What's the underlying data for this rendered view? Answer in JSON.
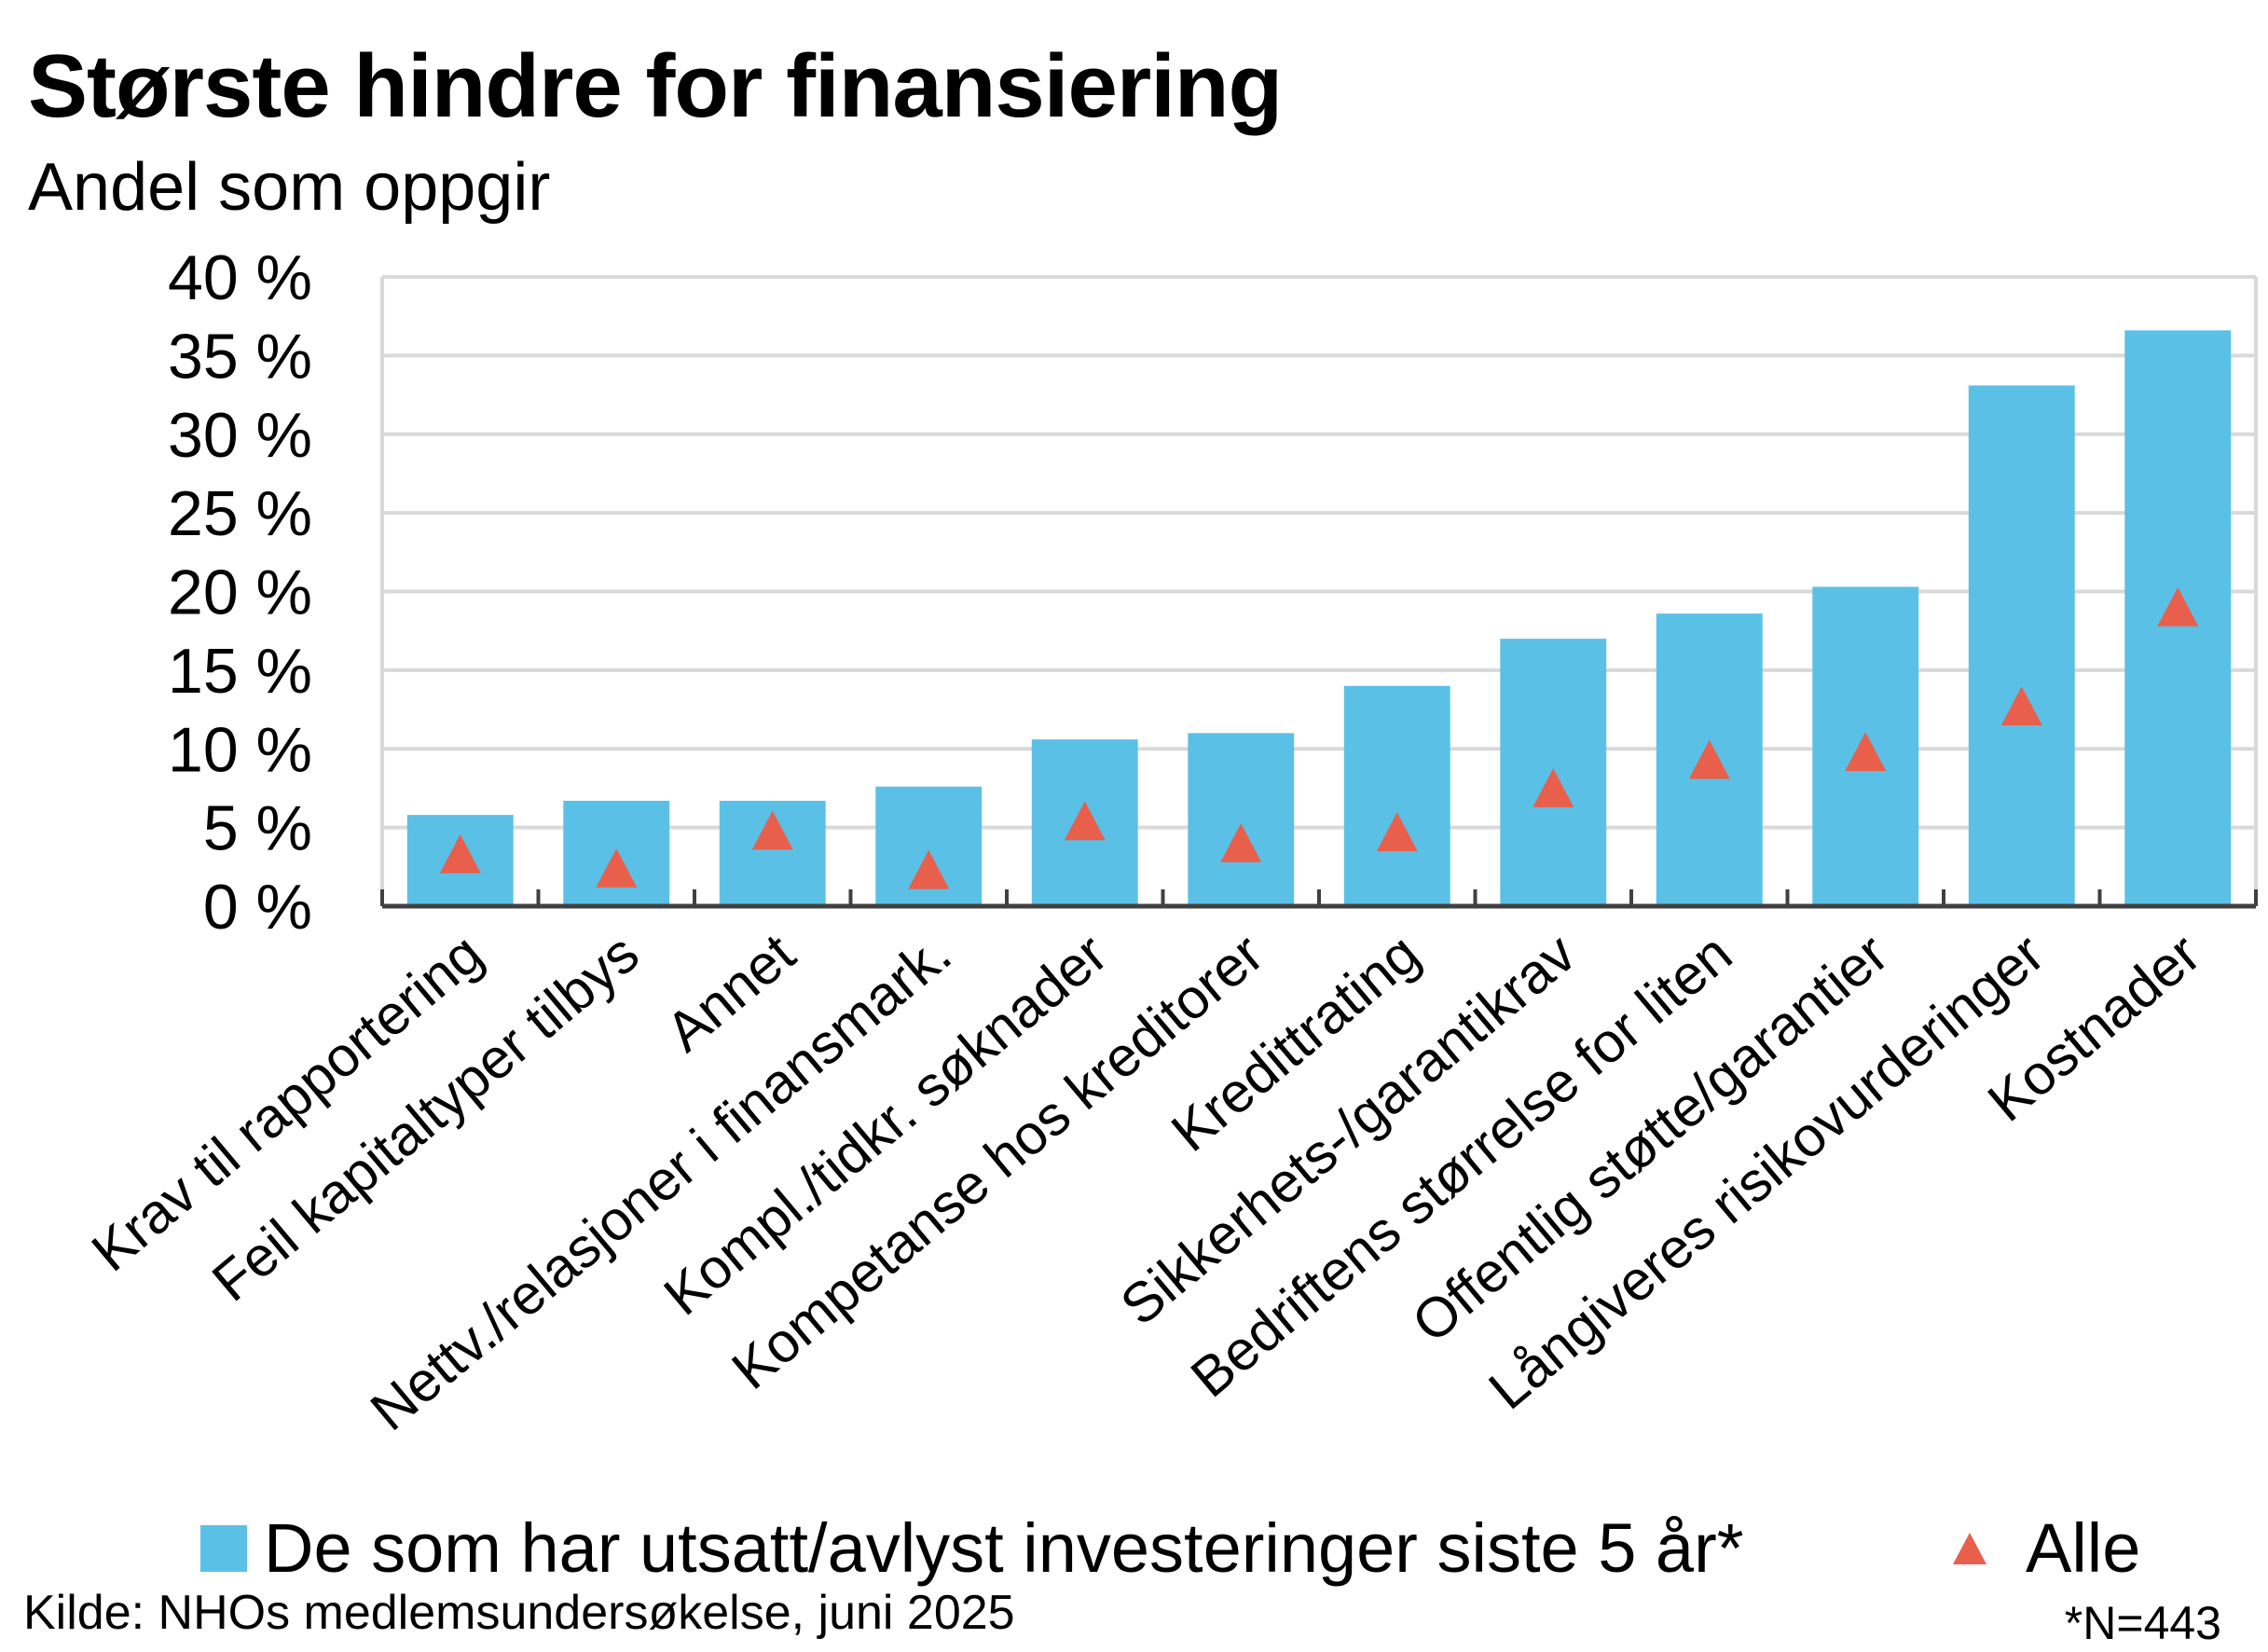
{
  "colors": {
    "bar": "#5bc0e6",
    "marker": "#e8604c",
    "grid": "#d9d9d9",
    "axis": "#404040"
  },
  "chart_data": {
    "type": "bar",
    "title": "Største hindre for finansiering",
    "subtitle": "Andel som oppgir",
    "categories": [
      "Krav til rapportering",
      "Feil kapitaltyper tilbys",
      "Annet",
      "Nettv./relasjoner i finansmark.",
      "Kompl./tidkr. søknader",
      "Kompetanse hos kreditorer",
      "Kredittrating",
      "Sikkerhets-/garantikrav",
      "Bedriftens størrelse for liten",
      "Offentlig støtte/garantier",
      "Långiveres risikovurderinger",
      "Kostnader"
    ],
    "series": [
      {
        "name": "De som har utsatt/avlyst investeringer siste 5 år*",
        "type": "bar",
        "values": [
          5.8,
          6.7,
          6.7,
          7.6,
          10.6,
          11.0,
          14.0,
          17.0,
          18.6,
          20.3,
          33.1,
          36.6
        ]
      },
      {
        "name": "Alle",
        "type": "marker",
        "values": [
          3.2,
          2.3,
          4.7,
          2.2,
          5.3,
          3.9,
          4.6,
          7.4,
          9.2,
          9.7,
          12.6,
          18.9
        ]
      }
    ],
    "yticks": [
      "0 %",
      "5 %",
      "10 %",
      "15 %",
      "20 %",
      "25 %",
      "30 %",
      "35 %",
      "40 %"
    ],
    "ylim": [
      0,
      40
    ],
    "grid": true,
    "legend_position": "bottom"
  },
  "source": "Kilde: NHOs medlemsundersøkelse, juni 2025",
  "note": "*N=443"
}
